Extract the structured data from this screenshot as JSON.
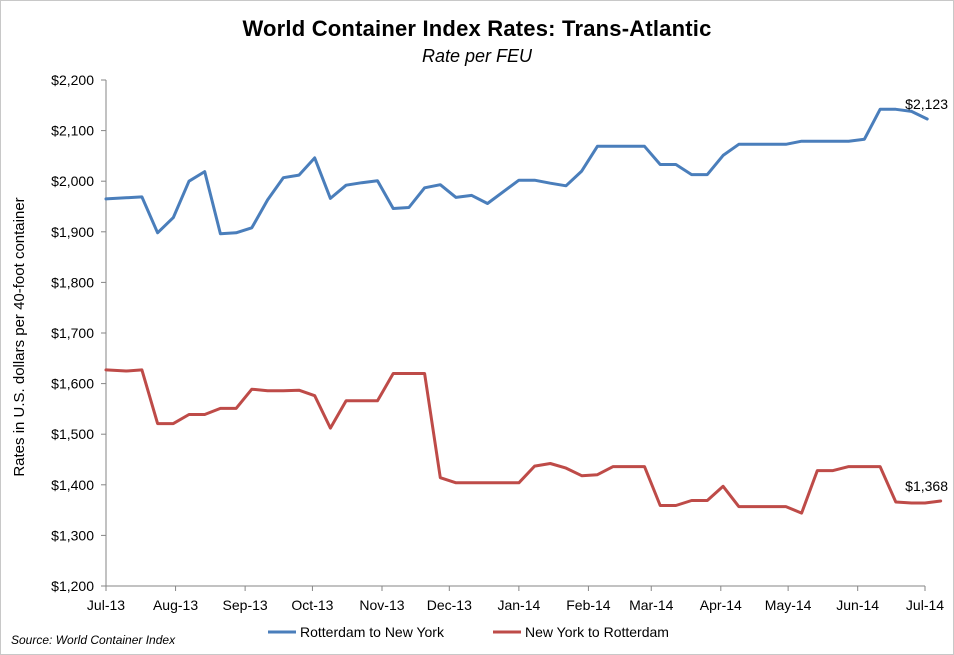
{
  "chart_data": {
    "type": "line",
    "title": "World Container Index Rates:  Trans-Atlantic",
    "subtitle": "Rate per FEU",
    "xlabel": "",
    "ylabel": "Rates in U.S. dollars per 40-foot container",
    "ylim": [
      1200,
      2200
    ],
    "y_ticks": [
      1200,
      1300,
      1400,
      1500,
      1600,
      1700,
      1800,
      1900,
      2000,
      2100,
      2200
    ],
    "y_tick_labels": [
      "$1,200",
      "$1,300",
      "$1,400",
      "$1,500",
      "$1,600",
      "$1,700",
      "$1,800",
      "$1,900",
      "$2,000",
      "$2,100",
      "$2,200"
    ],
    "x_tick_labels": [
      "Jul-13",
      "Aug-13",
      "Sep-13",
      "Oct-13",
      "Nov-13",
      "Dec-13",
      "Jan-14",
      "Feb-14",
      "Mar-14",
      "Apr-14",
      "May-14",
      "Jun-14",
      "Jul-14"
    ],
    "x_tick_dates": [
      "2013-07-01",
      "2013-08-01",
      "2013-09-01",
      "2013-10-01",
      "2013-11-01",
      "2013-12-01",
      "2014-01-01",
      "2014-02-01",
      "2014-03-01",
      "2014-04-01",
      "2014-05-01",
      "2014-06-01",
      "2014-07-01"
    ],
    "x_range": [
      "2013-07-01",
      "2014-07-01"
    ],
    "grid": false,
    "legend": "bottom",
    "series": [
      {
        "name": "Rotterdam to New York",
        "color": "#4a7ebb",
        "end_label": "$2,123",
        "points": [
          [
            "2013-07-01",
            1965
          ],
          [
            "2013-07-17",
            1969
          ],
          [
            "2013-07-24",
            1898
          ],
          [
            "2013-07-31",
            1928
          ],
          [
            "2013-08-07",
            2000
          ],
          [
            "2013-08-14",
            2019
          ],
          [
            "2013-08-21",
            1896
          ],
          [
            "2013-08-28",
            1898
          ],
          [
            "2013-09-04",
            1908
          ],
          [
            "2013-09-11",
            1963
          ],
          [
            "2013-09-18",
            2007
          ],
          [
            "2013-09-25",
            2012
          ],
          [
            "2013-10-02",
            2046
          ],
          [
            "2013-10-09",
            1966
          ],
          [
            "2013-10-16",
            1992
          ],
          [
            "2013-10-23",
            1997
          ],
          [
            "2013-10-30",
            2001
          ],
          [
            "2013-11-06",
            1946
          ],
          [
            "2013-11-13",
            1948
          ],
          [
            "2013-11-20",
            1987
          ],
          [
            "2013-11-27",
            1993
          ],
          [
            "2013-12-04",
            1968
          ],
          [
            "2013-12-11",
            1972
          ],
          [
            "2013-12-18",
            1956
          ],
          [
            "2014-01-01",
            2002
          ],
          [
            "2014-01-08",
            2002
          ],
          [
            "2014-01-15",
            1996
          ],
          [
            "2014-01-22",
            1991
          ],
          [
            "2014-01-29",
            2020
          ],
          [
            "2014-02-05",
            2069
          ],
          [
            "2014-02-12",
            2069
          ],
          [
            "2014-02-19",
            2069
          ],
          [
            "2014-02-26",
            2069
          ],
          [
            "2014-03-05",
            2033
          ],
          [
            "2014-03-12",
            2033
          ],
          [
            "2014-03-19",
            2013
          ],
          [
            "2014-03-26",
            2013
          ],
          [
            "2014-04-02",
            2051
          ],
          [
            "2014-04-09",
            2073
          ],
          [
            "2014-04-16",
            2073
          ],
          [
            "2014-04-23",
            2073
          ],
          [
            "2014-04-30",
            2073
          ],
          [
            "2014-05-07",
            2079
          ],
          [
            "2014-05-14",
            2079
          ],
          [
            "2014-05-21",
            2079
          ],
          [
            "2014-05-28",
            2079
          ],
          [
            "2014-06-04",
            2083
          ],
          [
            "2014-06-11",
            2142
          ],
          [
            "2014-06-18",
            2142
          ],
          [
            "2014-06-25",
            2138
          ],
          [
            "2014-07-02",
            2123
          ]
        ]
      },
      {
        "name": "New York to Rotterdam",
        "color": "#be4b48",
        "end_label": "$1,368",
        "points": [
          [
            "2013-07-01",
            1627
          ],
          [
            "2013-07-10",
            1625
          ],
          [
            "2013-07-17",
            1627
          ],
          [
            "2013-07-24",
            1521
          ],
          [
            "2013-07-31",
            1521
          ],
          [
            "2013-08-07",
            1539
          ],
          [
            "2013-08-14",
            1539
          ],
          [
            "2013-08-21",
            1551
          ],
          [
            "2013-08-28",
            1551
          ],
          [
            "2013-09-04",
            1589
          ],
          [
            "2013-09-11",
            1586
          ],
          [
            "2013-09-18",
            1586
          ],
          [
            "2013-09-25",
            1587
          ],
          [
            "2013-10-02",
            1576
          ],
          [
            "2013-10-09",
            1512
          ],
          [
            "2013-10-16",
            1566
          ],
          [
            "2013-10-23",
            1566
          ],
          [
            "2013-10-30",
            1566
          ],
          [
            "2013-11-06",
            1620
          ],
          [
            "2013-11-13",
            1620
          ],
          [
            "2013-11-20",
            1620
          ],
          [
            "2013-11-27",
            1414
          ],
          [
            "2013-12-04",
            1404
          ],
          [
            "2013-12-11",
            1404
          ],
          [
            "2013-12-18",
            1404
          ],
          [
            "2013-12-25",
            1404
          ],
          [
            "2014-01-01",
            1404
          ],
          [
            "2014-01-08",
            1437
          ],
          [
            "2014-01-15",
            1442
          ],
          [
            "2014-01-22",
            1433
          ],
          [
            "2014-01-29",
            1418
          ],
          [
            "2014-02-05",
            1420
          ],
          [
            "2014-02-12",
            1436
          ],
          [
            "2014-02-19",
            1436
          ],
          [
            "2014-02-26",
            1436
          ],
          [
            "2014-03-05",
            1359
          ],
          [
            "2014-03-12",
            1359
          ],
          [
            "2014-03-19",
            1369
          ],
          [
            "2014-03-26",
            1369
          ],
          [
            "2014-04-02",
            1397
          ],
          [
            "2014-04-09",
            1357
          ],
          [
            "2014-04-16",
            1357
          ],
          [
            "2014-04-23",
            1357
          ],
          [
            "2014-04-30",
            1357
          ],
          [
            "2014-05-07",
            1344
          ],
          [
            "2014-05-14",
            1428
          ],
          [
            "2014-05-21",
            1428
          ],
          [
            "2014-05-28",
            1436
          ],
          [
            "2014-06-04",
            1436
          ],
          [
            "2014-06-11",
            1436
          ],
          [
            "2014-06-18",
            1366
          ],
          [
            "2014-06-25",
            1364
          ],
          [
            "2014-07-01",
            1364
          ],
          [
            "2014-07-08",
            1368
          ]
        ]
      }
    ],
    "source": "Source:  World Container Index"
  }
}
